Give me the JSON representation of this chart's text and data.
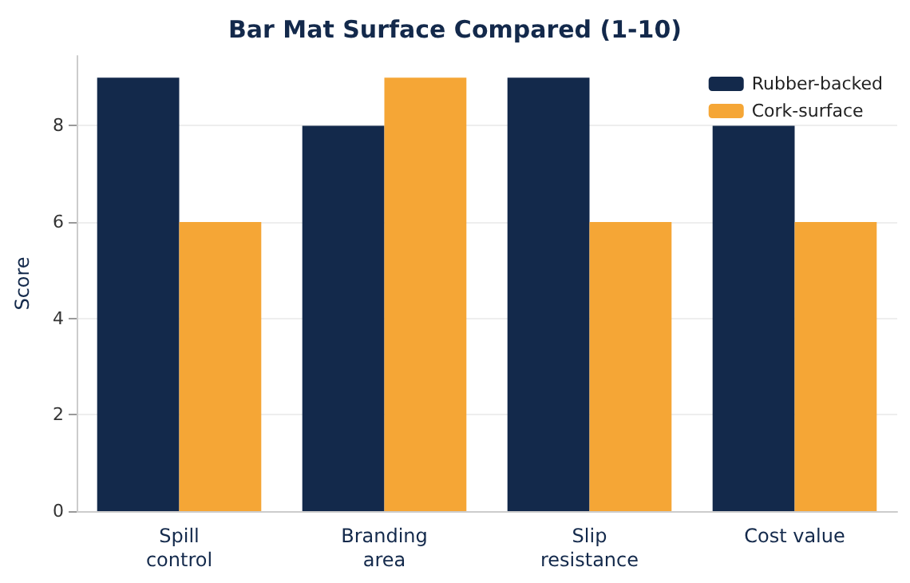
{
  "chart_data": {
    "type": "bar",
    "title": "Bar Mat Surface Compared (1-10)",
    "ylabel": "Score",
    "categories": [
      "Spill\ncontrol",
      "Branding\narea",
      "Slip\nresistance",
      "Cost value"
    ],
    "series": [
      {
        "name": "Rubber-backed",
        "color": "#13294b",
        "values": [
          9,
          8,
          9,
          8
        ]
      },
      {
        "name": "Cork-surface",
        "color": "#f5a636",
        "values": [
          6,
          9,
          6,
          6
        ]
      }
    ],
    "ylim": [
      0,
      9.45
    ],
    "yticks": [
      0,
      2,
      4,
      6,
      8
    ],
    "grid": "y",
    "legend": "top right"
  }
}
